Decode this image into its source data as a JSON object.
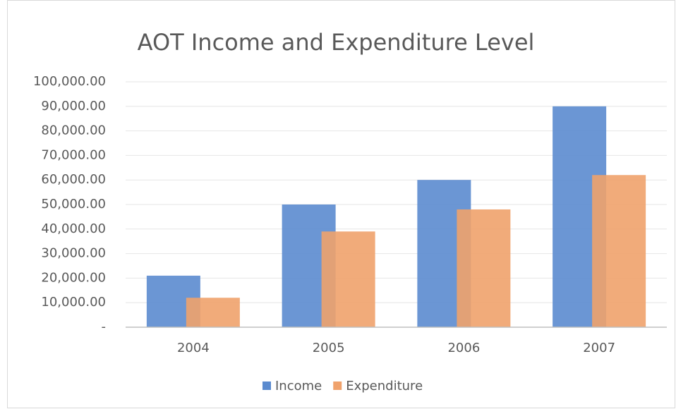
{
  "chart_data": {
    "type": "bar",
    "title": "AOT Income and Expenditure Level",
    "categories": [
      "2004",
      "2005",
      "2006",
      "2007"
    ],
    "series": [
      {
        "name": "Income",
        "color": "#5b8bcf",
        "values": [
          21000,
          50000,
          60000,
          90000
        ]
      },
      {
        "name": "Expenditure",
        "color": "#f0a26c",
        "values": [
          12000,
          39000,
          48000,
          62000
        ]
      }
    ],
    "ylim": [
      0,
      100000
    ],
    "yticks": [
      {
        "value": 0,
        "label": "-"
      },
      {
        "value": 10000,
        "label": "10,000.00"
      },
      {
        "value": 20000,
        "label": "20,000.00"
      },
      {
        "value": 30000,
        "label": "30,000.00"
      },
      {
        "value": 40000,
        "label": "40,000.00"
      },
      {
        "value": 50000,
        "label": "50,000.00"
      },
      {
        "value": 60000,
        "label": "60,000.00"
      },
      {
        "value": 70000,
        "label": "70,000.00"
      },
      {
        "value": 80000,
        "label": "80,000.00"
      },
      {
        "value": 90000,
        "label": "90,000.00"
      },
      {
        "value": 100000,
        "label": "100,000.00"
      }
    ],
    "grid": true,
    "legend": "bottom"
  }
}
